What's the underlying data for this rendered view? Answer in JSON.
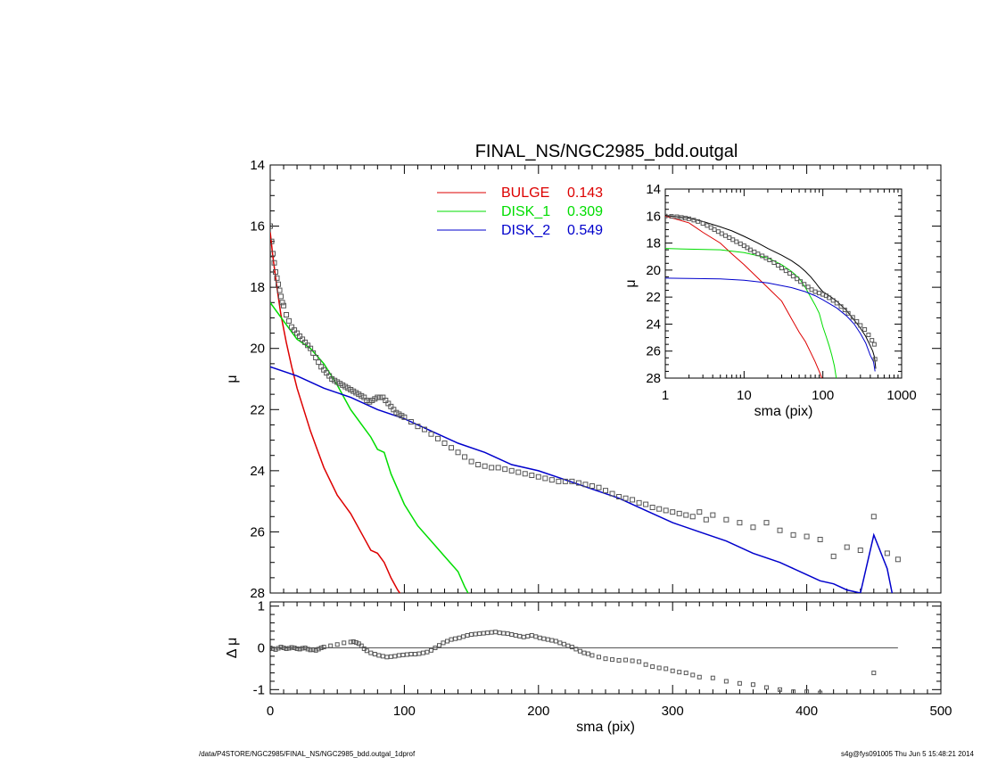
{
  "chart_data": {
    "type": "scatter",
    "title": "FINAL_NS/NGC2985_bdd.outgal",
    "main": {
      "xlabel": "",
      "ylabel": "μ",
      "xlim": [
        0,
        500
      ],
      "ylim": [
        28,
        14
      ],
      "xticks": [
        0,
        100,
        200,
        300,
        400,
        500
      ],
      "yticks": [
        14,
        16,
        18,
        20,
        22,
        24,
        26,
        28
      ],
      "legend": {
        "placement": "top-center",
        "entries": [
          {
            "name": "BULGE",
            "value": "0.143",
            "color": "#dd0000"
          },
          {
            "name": "DISK_1",
            "value": "0.309",
            "color": "#00dd00"
          },
          {
            "name": "DISK_2",
            "value": "0.549",
            "color": "#0000cc"
          }
        ]
      },
      "series": [
        {
          "kind": "line",
          "color": "#dd0000",
          "x": [
            0,
            2,
            5,
            8,
            12,
            16,
            20,
            25,
            30,
            35,
            40,
            50,
            60,
            70,
            75,
            80,
            85,
            90,
            95,
            100,
            105
          ],
          "y": [
            16.2,
            17.0,
            18.0,
            18.9,
            19.8,
            20.6,
            21.3,
            22.0,
            22.7,
            23.3,
            23.9,
            24.8,
            25.4,
            26.2,
            26.6,
            26.7,
            27.0,
            27.5,
            27.9,
            28.2,
            28.5
          ]
        },
        {
          "kind": "line",
          "color": "#00dd00",
          "x": [
            0,
            10,
            20,
            30,
            40,
            50,
            60,
            70,
            75,
            80,
            85,
            90,
            100,
            110,
            120,
            130,
            140,
            145,
            150
          ],
          "y": [
            18.5,
            19.1,
            19.7,
            20.0,
            20.5,
            21.2,
            22.0,
            22.6,
            22.9,
            23.3,
            23.4,
            24.1,
            25.1,
            25.8,
            26.3,
            26.8,
            27.3,
            27.8,
            28.2
          ]
        },
        {
          "kind": "line",
          "color": "#0000cc",
          "x": [
            0,
            20,
            40,
            60,
            80,
            100,
            120,
            140,
            160,
            180,
            200,
            220,
            240,
            260,
            280,
            300,
            320,
            340,
            360,
            380,
            400,
            410,
            420,
            430,
            440,
            450,
            460,
            465
          ],
          "y": [
            20.6,
            20.9,
            21.3,
            21.6,
            22.0,
            22.3,
            22.7,
            23.1,
            23.4,
            23.8,
            24.0,
            24.3,
            24.6,
            24.9,
            25.3,
            25.7,
            26.0,
            26.3,
            26.7,
            27.0,
            27.4,
            27.6,
            27.7,
            27.9,
            28.0,
            26.1,
            27.2,
            28.3
          ]
        },
        {
          "kind": "markers",
          "color": "#555555",
          "x": [
            0,
            1,
            2,
            3,
            4,
            5,
            6,
            7,
            8,
            9,
            10,
            12,
            14,
            16,
            18,
            20,
            22,
            24,
            26,
            28,
            30,
            32,
            34,
            36,
            38,
            40,
            42,
            44,
            46,
            48,
            50,
            52,
            54,
            56,
            58,
            60,
            62,
            64,
            66,
            68,
            70,
            72,
            74,
            76,
            78,
            80,
            82,
            84,
            86,
            88,
            90,
            92,
            94,
            96,
            98,
            100,
            105,
            110,
            115,
            120,
            125,
            130,
            135,
            140,
            145,
            150,
            155,
            160,
            165,
            170,
            175,
            180,
            185,
            190,
            195,
            200,
            205,
            210,
            215,
            220,
            225,
            230,
            235,
            240,
            245,
            250,
            255,
            260,
            265,
            270,
            275,
            280,
            285,
            290,
            295,
            300,
            305,
            310,
            315,
            320,
            325,
            330,
            340,
            350,
            360,
            370,
            380,
            390,
            400,
            410,
            420,
            430,
            440,
            450,
            460,
            468
          ],
          "y": [
            16.0,
            16.5,
            16.9,
            17.2,
            17.5,
            17.7,
            17.9,
            18.1,
            18.3,
            18.5,
            18.6,
            18.9,
            19.1,
            19.3,
            19.4,
            19.5,
            19.6,
            19.7,
            19.8,
            19.9,
            20.0,
            20.15,
            20.3,
            20.45,
            20.6,
            20.7,
            20.8,
            20.9,
            21.0,
            21.05,
            21.1,
            21.15,
            21.2,
            21.25,
            21.3,
            21.35,
            21.4,
            21.45,
            21.5,
            21.55,
            21.6,
            21.7,
            21.75,
            21.7,
            21.65,
            21.6,
            21.6,
            21.6,
            21.7,
            21.8,
            21.9,
            22.0,
            22.1,
            22.15,
            22.2,
            22.25,
            22.4,
            22.55,
            22.65,
            22.8,
            22.95,
            23.1,
            23.25,
            23.4,
            23.55,
            23.7,
            23.8,
            23.85,
            23.9,
            23.9,
            23.95,
            24.0,
            24.05,
            24.1,
            24.15,
            24.2,
            24.25,
            24.3,
            24.35,
            24.35,
            24.35,
            24.4,
            24.45,
            24.5,
            24.55,
            24.65,
            24.75,
            24.85,
            24.9,
            24.95,
            25.05,
            25.1,
            25.2,
            25.25,
            25.3,
            25.35,
            25.4,
            25.45,
            25.5,
            25.35,
            25.6,
            25.45,
            25.6,
            25.7,
            25.85,
            25.7,
            25.95,
            26.1,
            26.15,
            26.25,
            26.8,
            26.5,
            26.6,
            25.5,
            26.7,
            26.9
          ]
        }
      ]
    },
    "residual": {
      "xlabel": "sma (pix)",
      "ylabel": "Δ μ",
      "xlim": [
        0,
        500
      ],
      "ylim": [
        -1.1,
        1.1
      ],
      "yticks": [
        1,
        0,
        -1
      ],
      "xticks": [
        0,
        100,
        200,
        300,
        400,
        500
      ],
      "zero_line": {
        "x": [
          0,
          468
        ],
        "y": [
          0,
          0
        ]
      },
      "series": [
        {
          "kind": "markers",
          "color": "#555555",
          "x": [
            0,
            2,
            4,
            6,
            8,
            10,
            12,
            14,
            16,
            18,
            20,
            22,
            24,
            26,
            28,
            30,
            32,
            34,
            36,
            38,
            40,
            45,
            50,
            55,
            60,
            62,
            64,
            66,
            68,
            70,
            72,
            75,
            78,
            81,
            84,
            87,
            90,
            93,
            96,
            99,
            102,
            105,
            108,
            111,
            114,
            117,
            120,
            123,
            126,
            129,
            132,
            135,
            138,
            141,
            144,
            147,
            150,
            153,
            156,
            159,
            162,
            165,
            168,
            171,
            174,
            177,
            180,
            183,
            186,
            189,
            192,
            195,
            198,
            201,
            204,
            207,
            210,
            213,
            216,
            219,
            222,
            225,
            228,
            231,
            234,
            237,
            240,
            245,
            250,
            255,
            260,
            265,
            270,
            275,
            280,
            285,
            290,
            295,
            300,
            305,
            310,
            315,
            320,
            330,
            340,
            350,
            360,
            370,
            380,
            390,
            400,
            410,
            450
          ],
          "y": [
            0.0,
            -0.02,
            -0.04,
            -0.01,
            0.02,
            0.0,
            -0.02,
            -0.01,
            0.01,
            0.0,
            -0.02,
            -0.03,
            -0.01,
            0.0,
            -0.03,
            -0.05,
            -0.04,
            -0.06,
            -0.03,
            0.0,
            0.02,
            0.05,
            0.08,
            0.12,
            0.14,
            0.15,
            0.13,
            0.1,
            0.05,
            -0.02,
            -0.07,
            -0.12,
            -0.15,
            -0.18,
            -0.2,
            -0.22,
            -0.21,
            -0.2,
            -0.18,
            -0.17,
            -0.16,
            -0.15,
            -0.15,
            -0.14,
            -0.12,
            -0.1,
            -0.06,
            0.0,
            0.06,
            0.12,
            0.16,
            0.2,
            0.22,
            0.24,
            0.27,
            0.3,
            0.32,
            0.33,
            0.34,
            0.35,
            0.36,
            0.37,
            0.38,
            0.36,
            0.35,
            0.34,
            0.32,
            0.3,
            0.28,
            0.26,
            0.28,
            0.3,
            0.27,
            0.24,
            0.22,
            0.2,
            0.18,
            0.16,
            0.12,
            0.09,
            0.05,
            0.02,
            -0.03,
            -0.08,
            -0.12,
            -0.14,
            -0.18,
            -0.22,
            -0.26,
            -0.28,
            -0.3,
            -0.29,
            -0.31,
            -0.33,
            -0.4,
            -0.45,
            -0.48,
            -0.5,
            -0.55,
            -0.58,
            -0.6,
            -0.65,
            -0.7,
            -0.72,
            -0.8,
            -0.85,
            -0.88,
            -0.95,
            -1.0,
            -1.05,
            -1.05,
            -1.08,
            -0.6
          ]
        }
      ]
    },
    "inset": {
      "xlabel": "sma (pix)",
      "ylabel": "μ",
      "xscale": "log",
      "xlim": [
        1,
        1000
      ],
      "ylim": [
        28,
        14
      ],
      "xticks": [
        1,
        10,
        100,
        1000
      ],
      "yticks": [
        14,
        16,
        18,
        20,
        22,
        24,
        26,
        28
      ],
      "series": [
        {
          "kind": "line",
          "color": "#dd0000",
          "x": [
            1,
            2,
            3,
            5,
            7,
            10,
            15,
            20,
            30,
            40,
            50,
            60,
            70,
            80,
            90,
            100
          ],
          "y": [
            16.0,
            16.5,
            17.2,
            18.0,
            18.8,
            19.6,
            20.6,
            21.3,
            22.3,
            23.6,
            24.6,
            25.3,
            26.1,
            26.8,
            27.5,
            28.2
          ]
        },
        {
          "kind": "line",
          "color": "#00dd00",
          "x": [
            1,
            2,
            5,
            10,
            20,
            30,
            40,
            50,
            60,
            70,
            80,
            90,
            100,
            110,
            120,
            130,
            140,
            150
          ],
          "y": [
            18.4,
            18.45,
            18.5,
            18.7,
            19.1,
            19.6,
            20.1,
            20.6,
            21.3,
            22.0,
            22.6,
            23.2,
            24.2,
            24.9,
            25.6,
            26.3,
            27.1,
            28.2
          ]
        },
        {
          "kind": "line",
          "color": "#0000cc",
          "x": [
            1,
            2,
            5,
            10,
            20,
            40,
            60,
            80,
            100,
            150,
            200,
            250,
            300,
            350,
            400,
            440,
            460
          ],
          "y": [
            20.6,
            20.62,
            20.65,
            20.75,
            20.95,
            21.3,
            21.6,
            21.9,
            22.2,
            22.8,
            23.4,
            24.0,
            24.7,
            25.4,
            26.3,
            26.8,
            27.5
          ]
        },
        {
          "kind": "line",
          "color": "#000000",
          "x": [
            1,
            2,
            3,
            5,
            7,
            10,
            15,
            20,
            30,
            40,
            50,
            60,
            70,
            80,
            90,
            100,
            120,
            150,
            200,
            250,
            300,
            350,
            400,
            430,
            450,
            460,
            470
          ],
          "y": [
            15.95,
            16.15,
            16.4,
            16.8,
            17.1,
            17.5,
            18.0,
            18.4,
            18.9,
            19.3,
            19.7,
            20.1,
            20.5,
            20.9,
            21.3,
            21.6,
            21.9,
            22.3,
            23.0,
            23.7,
            24.3,
            24.9,
            25.6,
            26.0,
            26.4,
            26.8,
            27.3
          ]
        },
        {
          "kind": "markers",
          "color": "#555555",
          "x": [
            1,
            1.2,
            1.4,
            1.6,
            1.8,
            2,
            2.3,
            2.6,
            3,
            3.4,
            3.8,
            4.2,
            4.7,
            5.2,
            5.8,
            6.5,
            7.2,
            8,
            9,
            10,
            11,
            12,
            13.5,
            15,
            17,
            19,
            21,
            24,
            27,
            30,
            34,
            38,
            42,
            47,
            52,
            58,
            65,
            72,
            80,
            90,
            100,
            110,
            120,
            135,
            150,
            170,
            190,
            210,
            240,
            270,
            300,
            340,
            380,
            420,
            450,
            460
          ],
          "y": [
            16.0,
            16.02,
            16.05,
            16.1,
            16.15,
            16.2,
            16.3,
            16.4,
            16.55,
            16.7,
            16.85,
            17.0,
            17.15,
            17.3,
            17.45,
            17.6,
            17.75,
            17.9,
            18.05,
            18.2,
            18.35,
            18.5,
            18.65,
            18.8,
            18.95,
            19.1,
            19.25,
            19.45,
            19.65,
            19.85,
            20.05,
            20.25,
            20.45,
            20.65,
            20.85,
            21.05,
            21.25,
            21.45,
            21.6,
            21.7,
            21.8,
            21.9,
            22.05,
            22.25,
            22.45,
            22.7,
            22.95,
            23.2,
            23.5,
            23.8,
            24.1,
            24.4,
            24.8,
            25.2,
            25.5,
            26.6
          ]
        }
      ]
    }
  },
  "footer": {
    "left": "/data/P4STORE/NGC2985/FINAL_NS/NGC2985_bdd.outgal_1dprof",
    "right": "s4g@fys091005  Thu Jun  5 15:48:21 2014"
  }
}
